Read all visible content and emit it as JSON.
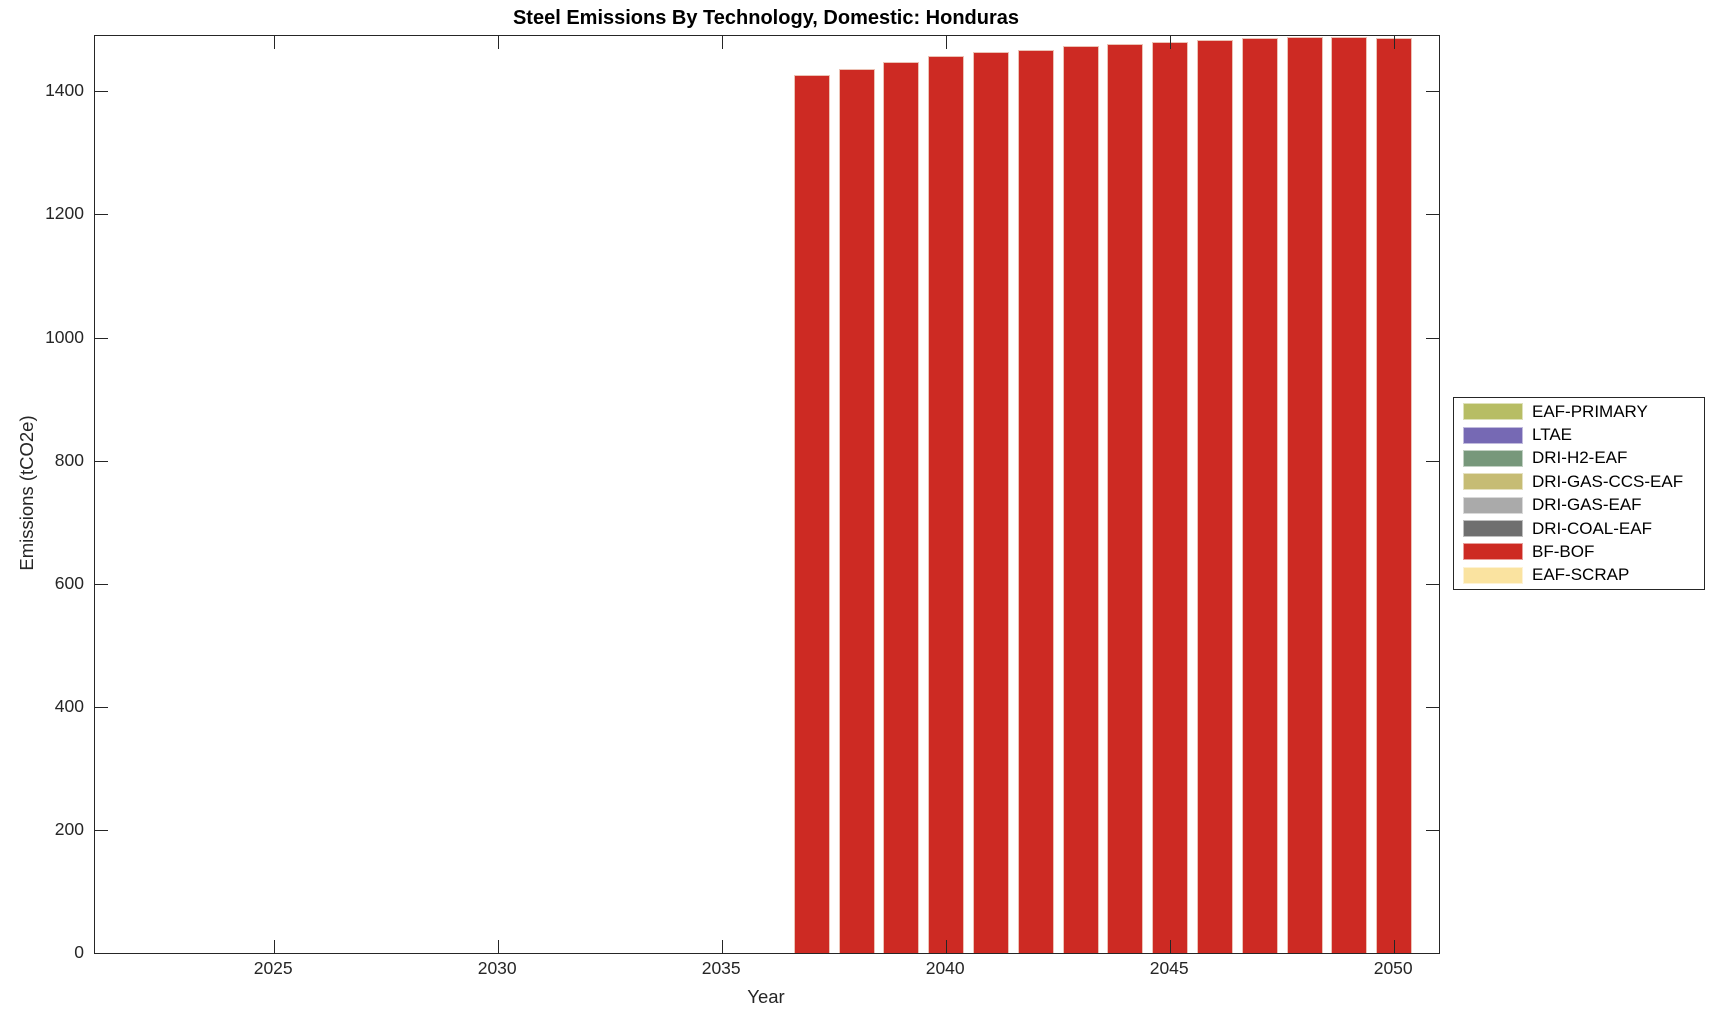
{
  "chart_data": {
    "type": "bar",
    "title": "Steel Emissions By Technology, Domestic: Honduras",
    "xlabel": "Year",
    "ylabel": "Emissions (tCO2e)",
    "xlim": [
      2021,
      2051
    ],
    "ylim": [
      0,
      1490
    ],
    "xticks": [
      2025,
      2030,
      2035,
      2040,
      2045,
      2050
    ],
    "yticks": [
      0,
      200,
      400,
      600,
      800,
      1000,
      1200,
      1400
    ],
    "bar_width_years": 0.8,
    "grid": false,
    "legend_position": "right-outside",
    "x": [
      2037,
      2038,
      2039,
      2040,
      2041,
      2042,
      2043,
      2044,
      2045,
      2046,
      2047,
      2048,
      2049,
      2050
    ],
    "series": [
      {
        "name": "BF-BOF",
        "color": "#CD2A23",
        "values": [
          1427,
          1437,
          1447,
          1458,
          1464,
          1468,
          1473,
          1477,
          1481,
          1484,
          1487,
          1488,
          1488,
          1487
        ]
      }
    ],
    "legend": [
      {
        "label": "EAF-PRIMARY",
        "color": "#B7BD64"
      },
      {
        "label": "LTAE",
        "color": "#7669B4"
      },
      {
        "label": "DRI-H2-EAF",
        "color": "#77987B"
      },
      {
        "label": "DRI-GAS-CCS-EAF",
        "color": "#C6BC74"
      },
      {
        "label": "DRI-GAS-EAF",
        "color": "#AAAAAA"
      },
      {
        "label": "DRI-COAL-EAF",
        "color": "#6F6F6F"
      },
      {
        "label": "BF-BOF",
        "color": "#CD2A23"
      },
      {
        "label": "EAF-SCRAP",
        "color": "#FAE3A0"
      }
    ],
    "colors": {
      "axis": "#262626",
      "bar_edge": "#ECC2B5",
      "background": "#FFFFFF"
    }
  }
}
